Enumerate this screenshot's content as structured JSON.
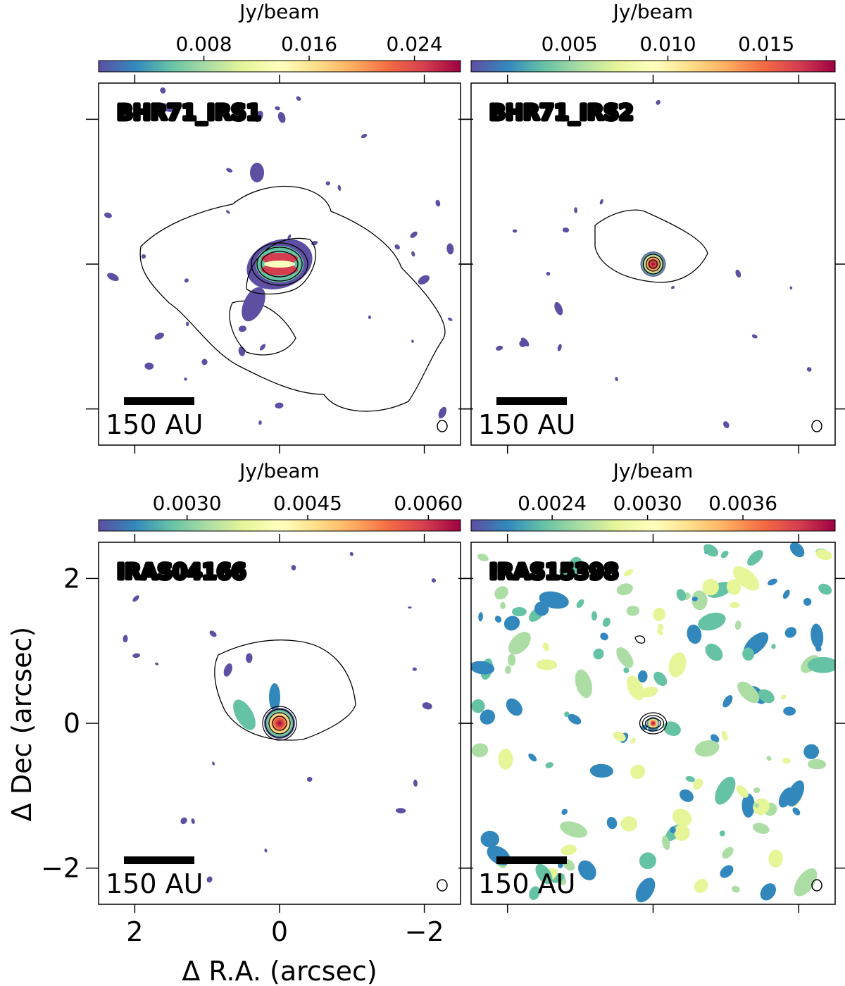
{
  "figure": {
    "xlabel": "Δ R.A. (arcsec)",
    "ylabel": "Δ Dec (arcsec)",
    "colorbar_label": "Jy/beam",
    "colormap": "Spectral_r",
    "colormap_colors": [
      "#5e4fa2",
      "#3288bd",
      "#66c2a5",
      "#abdda4",
      "#e6f598",
      "#ffffbf",
      "#fee08b",
      "#fdae61",
      "#f46d43",
      "#d53e4f",
      "#9e0142"
    ],
    "scalebar_label": "150 AU"
  },
  "chart_data": [
    {
      "type": "heatmap",
      "title": "BHR71_IRS1",
      "colorbar_label": "Jy/beam",
      "colorbar_ticks": [
        0.008,
        0.016,
        0.024
      ],
      "colorbar_tick_labels": [
        "0.008",
        "0.016",
        "0.024"
      ],
      "colorbar_range": [
        0.0,
        0.0275
      ],
      "xlim": [
        2.5,
        -2.5
      ],
      "ylim": [
        -2.5,
        2.5
      ],
      "xticks": [
        2,
        0,
        -2
      ],
      "yticks": [
        2,
        0,
        -2
      ],
      "tick_labels_shown": false,
      "scalebar_label": "150 AU",
      "peak": [
        0,
        0
      ],
      "contours": "black, extended envelope"
    },
    {
      "type": "heatmap",
      "title": "BHR71_IRS2",
      "colorbar_label": "Jy/beam",
      "colorbar_ticks": [
        0.005,
        0.01,
        0.015
      ],
      "colorbar_tick_labels": [
        "0.005",
        "0.010",
        "0.015"
      ],
      "colorbar_range": [
        0.0,
        0.0185
      ],
      "xlim": [
        2.5,
        -2.5
      ],
      "ylim": [
        -2.5,
        2.5
      ],
      "xticks": [
        2,
        0,
        -2
      ],
      "yticks": [
        2,
        0,
        -2
      ],
      "tick_labels_shown": false,
      "scalebar_label": "150 AU",
      "peak": [
        0,
        0
      ],
      "contours": "black, compact"
    },
    {
      "type": "heatmap",
      "title": "IRAS04166",
      "colorbar_label": "Jy/beam",
      "colorbar_ticks": [
        0.003,
        0.0045,
        0.006
      ],
      "colorbar_tick_labels": [
        "0.0030",
        "0.0045",
        "0.0060"
      ],
      "colorbar_range": [
        0.0019,
        0.0064
      ],
      "xlim": [
        2.5,
        -2.5
      ],
      "ylim": [
        -2.5,
        2.5
      ],
      "xticks": [
        2,
        0,
        -2
      ],
      "yticks": [
        2,
        0,
        -2
      ],
      "xtick_labels": [
        "2",
        "0",
        "−2"
      ],
      "ytick_labels": [
        "2",
        "0",
        "−2"
      ],
      "tick_labels_shown": true,
      "scalebar_label": "150 AU",
      "peak": [
        0,
        0
      ],
      "contours": "black, outflow cavity"
    },
    {
      "type": "heatmap",
      "title": "IRAS15398",
      "colorbar_label": "Jy/beam",
      "colorbar_ticks": [
        0.0024,
        0.003,
        0.0036
      ],
      "colorbar_tick_labels": [
        "0.0024",
        "0.0030",
        "0.0036"
      ],
      "colorbar_range": [
        0.00189,
        0.00418
      ],
      "xlim": [
        2.5,
        -2.5
      ],
      "ylim": [
        -2.5,
        2.5
      ],
      "xticks": [
        2,
        0,
        -2
      ],
      "yticks": [
        2,
        0,
        -2
      ],
      "tick_labels_shown": false,
      "scalebar_label": "150 AU",
      "peak": [
        0,
        0
      ],
      "contours": "black, compact"
    }
  ]
}
